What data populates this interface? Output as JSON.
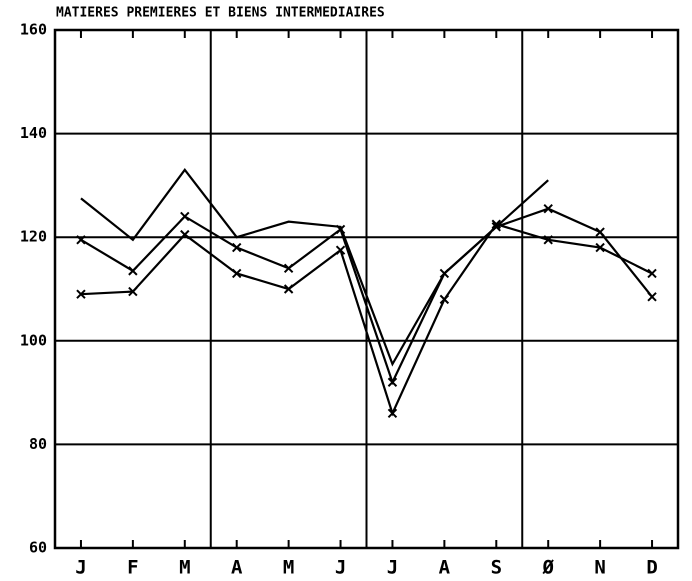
{
  "chart_data": {
    "type": "line",
    "title": "MATIERES PREMIERES ET BIENS INTERMEDIAIRES",
    "categories": [
      "J",
      "F",
      "M",
      "A",
      "M",
      "J",
      "J",
      "A",
      "S",
      "Ø",
      "N",
      "D"
    ],
    "series": [
      {
        "color": "#000000",
        "marker": "none",
        "values": [
          127.5,
          119.5,
          133,
          120,
          123,
          122,
          95.5,
          113,
          122,
          131,
          null,
          null
        ]
      },
      {
        "color": "#000000",
        "marker": "x",
        "values": [
          119.5,
          113.5,
          124,
          118,
          114,
          121.5,
          92,
          113,
          122,
          125.5,
          121,
          108.5
        ]
      },
      {
        "color": "#000000",
        "marker": "x",
        "values": [
          109,
          109.5,
          120.5,
          113,
          110,
          117.5,
          86,
          108,
          122.5,
          119.5,
          118,
          113
        ]
      }
    ],
    "ylim": [
      60,
      160
    ],
    "yticks": [
      60,
      80,
      100,
      120,
      140,
      160
    ],
    "grid": true
  }
}
